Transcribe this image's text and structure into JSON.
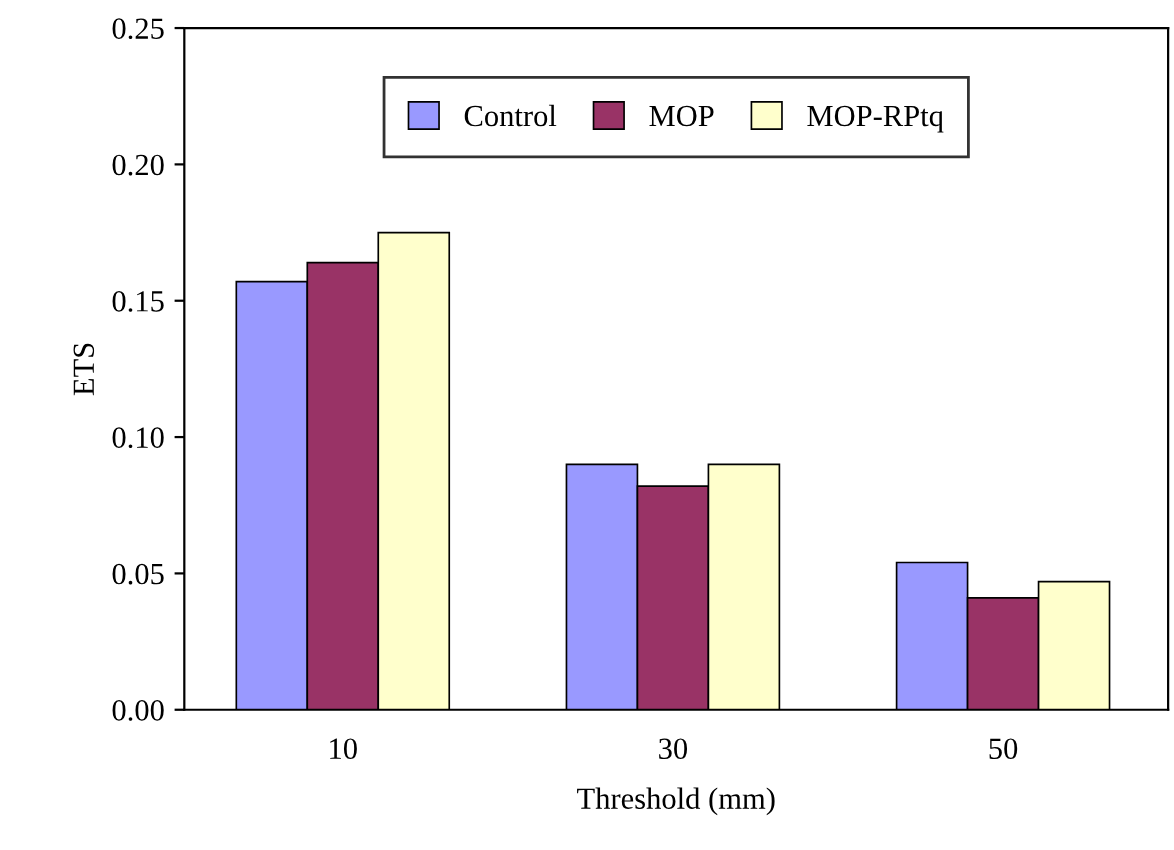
{
  "chart_data": {
    "type": "bar",
    "xlabel": "Threshold (mm)",
    "ylabel": "ETS",
    "categories": [
      "10",
      "30",
      "50"
    ],
    "series": [
      {
        "name": "Control",
        "color": "#9999ff",
        "values": [
          0.157,
          0.09,
          0.054
        ]
      },
      {
        "name": "MOP",
        "color": "#993366",
        "values": [
          0.164,
          0.082,
          0.041
        ]
      },
      {
        "name": "MOP-RPtq",
        "color": "#ffffcc",
        "values": [
          0.175,
          0.09,
          0.047
        ]
      }
    ],
    "ylim": [
      0,
      0.25
    ],
    "yticks": [
      {
        "value": 0,
        "label": "0.00"
      },
      {
        "value": 0.05,
        "label": "0.05"
      },
      {
        "value": 0.1,
        "label": "0.10"
      },
      {
        "value": 0.15,
        "label": "0.15"
      },
      {
        "value": 0.2,
        "label": "0.20"
      },
      {
        "value": 0.25,
        "label": "0.25"
      }
    ],
    "grid": false,
    "legend": "top"
  }
}
